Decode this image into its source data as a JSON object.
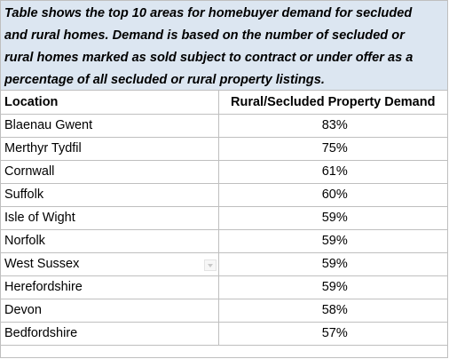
{
  "caption": {
    "line1": "Table shows the top 10 areas for homebuyer demand for secluded",
    "line2": "and rural homes. Demand is based on the number of secluded or",
    "line3": "rural homes marked as sold subject to contract or under offer as a",
    "line4": "percentage of all secluded or rural property listings."
  },
  "table": {
    "headers": {
      "location": "Location",
      "demand": "Rural/Secluded Property Demand"
    },
    "rows": [
      {
        "location": "Blaenau Gwent",
        "demand": "83%"
      },
      {
        "location": "Merthyr Tydfil",
        "demand": "75%"
      },
      {
        "location": "Cornwall",
        "demand": "61%"
      },
      {
        "location": "Suffolk",
        "demand": "60%"
      },
      {
        "location": "Isle of Wight",
        "demand": "59%"
      },
      {
        "location": "Norfolk",
        "demand": "59%"
      },
      {
        "location": "West Sussex",
        "demand": "59%"
      },
      {
        "location": "Herefordshire",
        "demand": "59%"
      },
      {
        "location": "Devon",
        "demand": "58%"
      },
      {
        "location": "Bedfordshire",
        "demand": "57%"
      }
    ]
  },
  "icons": {
    "filter_dropdown": "chevron-down-icon"
  }
}
